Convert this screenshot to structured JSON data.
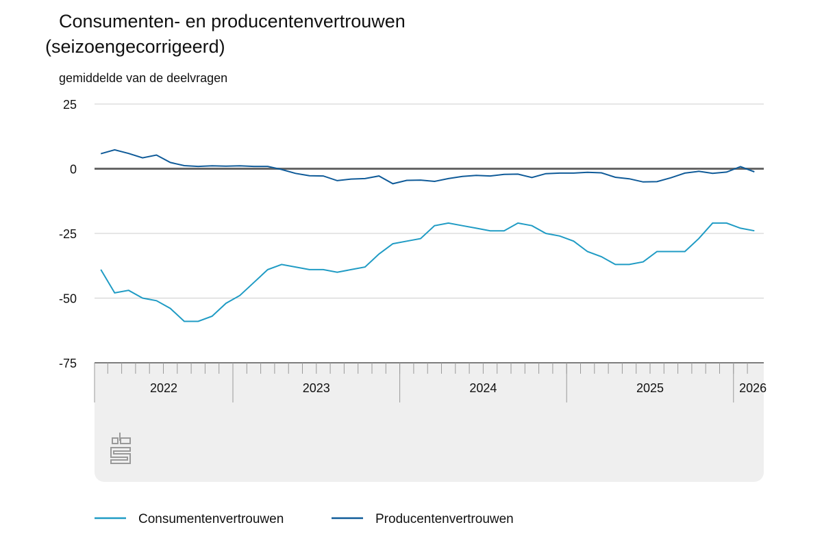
{
  "chart_data": {
    "type": "line",
    "title": "Consumenten- en producentenvertrouwen",
    "subtitle": "(seizoengecorrigeerd)",
    "y_label": "gemiddelde van de deelvragen",
    "categories": [
      null,
      null,
      null,
      null,
      null,
      null,
      null,
      null,
      null,
      null,
      null,
      null,
      null,
      null,
      null,
      null,
      null,
      null,
      null,
      null,
      null,
      null,
      null,
      null,
      null,
      null,
      null,
      null,
      null,
      null,
      null,
      null,
      null,
      null,
      null,
      null,
      null,
      null,
      null,
      null,
      null,
      null,
      null,
      null,
      null,
      null,
      null,
      null
    ],
    "year_groups": [
      {
        "label": "2022",
        "start": 0,
        "count": 10
      },
      {
        "label": "2023",
        "start": 10,
        "count": 12
      },
      {
        "label": "2024",
        "start": 22,
        "count": 12
      },
      {
        "label": "2025",
        "start": 34,
        "count": 12
      },
      {
        "label": "2026",
        "start": 46,
        "count": 2
      }
    ],
    "series": [
      {
        "name": "Consumentenvertrouwen",
        "color": "#1f9bc4",
        "values": [
          -39,
          -48,
          -47,
          -50,
          -51,
          -54,
          -59,
          -59,
          -57,
          -52,
          -49,
          -44,
          -39,
          -37,
          -38,
          -39,
          -39,
          -40,
          -39,
          -38,
          -33,
          -29,
          -28,
          -27,
          -22,
          -21,
          -22,
          -23,
          -24,
          -24,
          -21,
          -22,
          -25,
          -26,
          -28,
          -32,
          -34,
          -37,
          -37,
          -36,
          -32,
          -32,
          -32,
          -27,
          -21,
          -21,
          -23,
          -24
        ]
      },
      {
        "name": "Producentenvertrouwen",
        "color": "#0e5a98",
        "values": [
          5.8,
          7.3,
          5.9,
          4.2,
          5.3,
          2.4,
          1.2,
          0.9,
          1.1,
          1.0,
          1.1,
          0.9,
          0.9,
          -0.3,
          -1.8,
          -2.7,
          -2.8,
          -4.6,
          -4.0,
          -3.8,
          -2.8,
          -5.8,
          -4.5,
          -4.4,
          -4.9,
          -3.8,
          -3.0,
          -2.6,
          -2.8,
          -2.2,
          -2.1,
          -3.4,
          -1.9,
          -1.7,
          -1.7,
          -1.4,
          -1.6,
          -3.3,
          -3.9,
          -5.1,
          -5.0,
          -3.5,
          -1.7,
          -1.0,
          -1.8,
          -1.3,
          0.8,
          -1.2
        ]
      }
    ],
    "ylim": [
      -75,
      25
    ],
    "yticks": [
      25,
      0,
      -25,
      -50,
      -75
    ],
    "grid": true
  }
}
